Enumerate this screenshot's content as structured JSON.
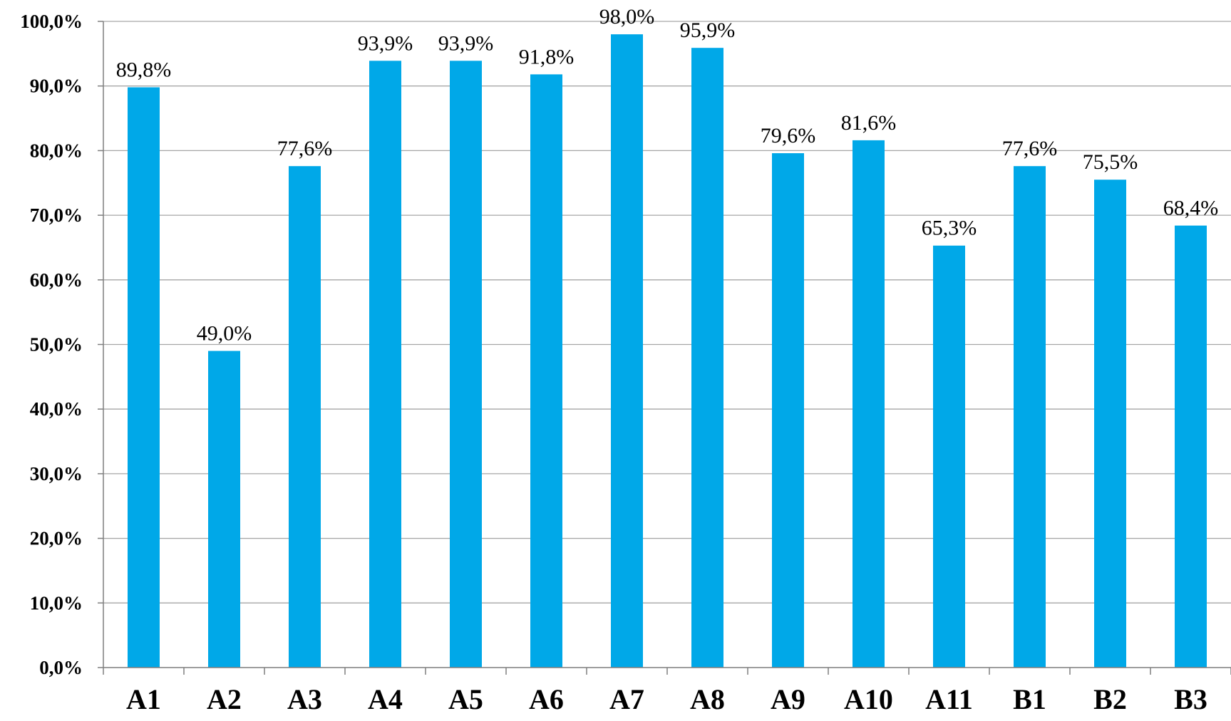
{
  "chart_data": {
    "type": "bar",
    "categories": [
      "A1",
      "A2",
      "A3",
      "A4",
      "A5",
      "A6",
      "A7",
      "A8",
      "A9",
      "A10",
      "A11",
      "B1",
      "B2",
      "B3"
    ],
    "values": [
      89.8,
      49.0,
      77.6,
      93.9,
      93.9,
      91.8,
      98.0,
      95.9,
      79.6,
      81.6,
      65.3,
      77.6,
      75.5,
      68.4
    ],
    "data_labels": [
      "89,8%",
      "49,0%",
      "77,6%",
      "93,9%",
      "93,9%",
      "91,8%",
      "98,0%",
      "95,9%",
      "79,6%",
      "81,6%",
      "65,3%",
      "77,6%",
      "75,5%",
      "68,4%"
    ],
    "y_ticks": [
      "0,0%",
      "10,0%",
      "20,0%",
      "30,0%",
      "40,0%",
      "50,0%",
      "60,0%",
      "70,0%",
      "80,0%",
      "90,0%",
      "100,0%"
    ],
    "ylim": [
      0,
      100
    ],
    "grid": true,
    "legend": "none",
    "bar_color": "#00A8E8",
    "title": "",
    "xlabel": "",
    "ylabel": ""
  }
}
